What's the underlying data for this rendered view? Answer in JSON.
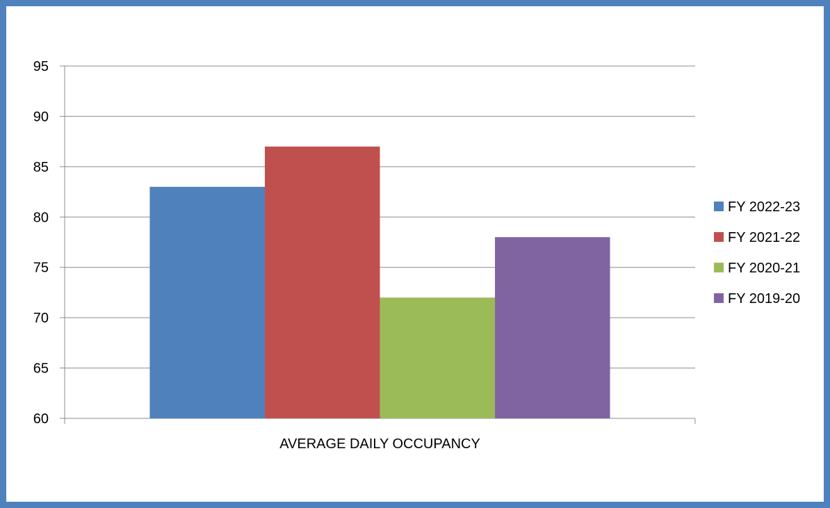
{
  "chart_data": {
    "type": "bar",
    "categories": [
      "AVERAGE DAILY OCCUPANCY"
    ],
    "series": [
      {
        "name": "FY 2022-23",
        "values": [
          83
        ],
        "color": "#4f81bd"
      },
      {
        "name": "FY 2021-22",
        "values": [
          87
        ],
        "color": "#c0504d"
      },
      {
        "name": "FY 2020-21",
        "values": [
          72
        ],
        "color": "#9bbb59"
      },
      {
        "name": "FY 2019-20",
        "values": [
          78
        ],
        "color": "#8064a2"
      }
    ],
    "ylim": [
      60,
      95
    ],
    "yticks": [
      60,
      65,
      70,
      75,
      80,
      85,
      90,
      95
    ],
    "grid": true,
    "legend": "right",
    "frame_color": "#4f81bd"
  }
}
